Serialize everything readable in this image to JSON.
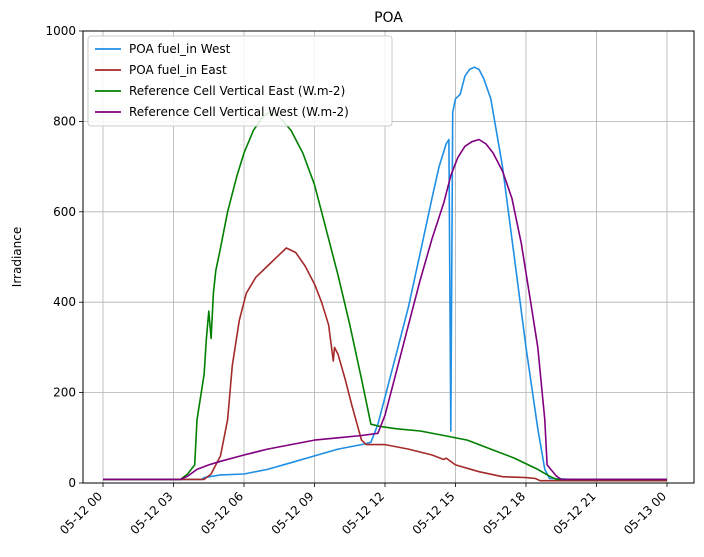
{
  "chart_data": {
    "type": "line",
    "title": "POA",
    "xlabel": "",
    "ylabel": "Irradiance",
    "x_tick_labels": [
      "05-12 00",
      "05-12 03",
      "05-12 06",
      "05-12 09",
      "05-12 12",
      "05-12 15",
      "05-12 18",
      "05-12 21",
      "05-13 00"
    ],
    "y_tick_labels": [
      "0",
      "200",
      "400",
      "600",
      "800",
      "1000"
    ],
    "xlim": [
      0,
      24
    ],
    "ylim": [
      0,
      1000
    ],
    "x_unit": "hours since 05-12 00",
    "grid": true,
    "legend_position": "top-left",
    "series": [
      {
        "name": "POA fuel_in West",
        "color": "#1f8fe6",
        "points": [
          [
            0,
            8
          ],
          [
            4.2,
            8
          ],
          [
            4.3,
            12
          ],
          [
            5,
            18
          ],
          [
            6,
            20
          ],
          [
            7,
            30
          ],
          [
            8,
            45
          ],
          [
            9,
            60
          ],
          [
            10,
            75
          ],
          [
            11,
            85
          ],
          [
            11.4,
            90
          ],
          [
            11.7,
            130
          ],
          [
            12,
            190
          ],
          [
            12.5,
            290
          ],
          [
            13,
            390
          ],
          [
            13.5,
            510
          ],
          [
            14,
            630
          ],
          [
            14.3,
            700
          ],
          [
            14.6,
            750
          ],
          [
            14.72,
            760
          ],
          [
            14.8,
            115
          ],
          [
            14.88,
            820
          ],
          [
            15,
            850
          ],
          [
            15.2,
            860
          ],
          [
            15.4,
            900
          ],
          [
            15.6,
            915
          ],
          [
            15.8,
            920
          ],
          [
            16,
            915
          ],
          [
            16.2,
            895
          ],
          [
            16.5,
            850
          ],
          [
            17,
            700
          ],
          [
            17.5,
            500
          ],
          [
            18,
            300
          ],
          [
            18.5,
            120
          ],
          [
            18.8,
            30
          ],
          [
            19,
            10
          ],
          [
            20,
            8
          ],
          [
            24,
            8
          ]
        ]
      },
      {
        "name": "POA fuel_in East",
        "color": "#a52a2a",
        "points": [
          [
            0,
            8
          ],
          [
            4.3,
            8
          ],
          [
            4.6,
            20
          ],
          [
            5,
            60
          ],
          [
            5.3,
            140
          ],
          [
            5.5,
            260
          ],
          [
            5.8,
            360
          ],
          [
            6.1,
            420
          ],
          [
            6.5,
            455
          ],
          [
            7,
            480
          ],
          [
            7.5,
            505
          ],
          [
            7.8,
            520
          ],
          [
            8.2,
            510
          ],
          [
            8.6,
            480
          ],
          [
            9,
            440
          ],
          [
            9.3,
            400
          ],
          [
            9.6,
            350
          ],
          [
            9.8,
            270
          ],
          [
            9.85,
            300
          ],
          [
            10,
            285
          ],
          [
            10.3,
            230
          ],
          [
            10.6,
            170
          ],
          [
            11,
            95
          ],
          [
            11.2,
            85
          ],
          [
            12,
            85
          ],
          [
            13,
            75
          ],
          [
            14,
            62
          ],
          [
            14.5,
            52
          ],
          [
            14.6,
            55
          ],
          [
            15,
            40
          ],
          [
            16,
            25
          ],
          [
            17,
            14
          ],
          [
            18,
            12
          ],
          [
            18.4,
            10
          ],
          [
            18.6,
            5
          ],
          [
            19,
            5
          ],
          [
            24,
            5
          ]
        ]
      },
      {
        "name": "Reference Cell Vertical East (W.m-2)",
        "color": "#008000",
        "points": [
          [
            0,
            8
          ],
          [
            3.3,
            8
          ],
          [
            3.6,
            20
          ],
          [
            3.9,
            40
          ],
          [
            4,
            140
          ],
          [
            4.3,
            240
          ],
          [
            4.4,
            320
          ],
          [
            4.5,
            380
          ],
          [
            4.6,
            320
          ],
          [
            4.7,
            420
          ],
          [
            4.8,
            470
          ],
          [
            5,
            520
          ],
          [
            5.3,
            600
          ],
          [
            5.7,
            680
          ],
          [
            6,
            730
          ],
          [
            6.4,
            780
          ],
          [
            6.8,
            810
          ],
          [
            7.2,
            825
          ],
          [
            7.5,
            810
          ],
          [
            8,
            780
          ],
          [
            8.5,
            730
          ],
          [
            9,
            660
          ],
          [
            9.5,
            560
          ],
          [
            10,
            460
          ],
          [
            10.5,
            350
          ],
          [
            11,
            230
          ],
          [
            11.4,
            130
          ],
          [
            11.8,
            125
          ],
          [
            12.5,
            120
          ],
          [
            13.5,
            115
          ],
          [
            14.5,
            105
          ],
          [
            15.5,
            95
          ],
          [
            16.5,
            75
          ],
          [
            17.5,
            55
          ],
          [
            18.5,
            30
          ],
          [
            19,
            15
          ],
          [
            19.3,
            8
          ],
          [
            24,
            8
          ]
        ]
      },
      {
        "name": "Reference Cell Vertical West (W.m-2)",
        "color": "#800080",
        "points": [
          [
            0,
            8
          ],
          [
            3.3,
            8
          ],
          [
            3.6,
            15
          ],
          [
            4,
            30
          ],
          [
            4.5,
            40
          ],
          [
            5,
            48
          ],
          [
            6,
            62
          ],
          [
            7,
            75
          ],
          [
            8,
            85
          ],
          [
            9,
            95
          ],
          [
            10,
            100
          ],
          [
            11,
            105
          ],
          [
            11.7,
            110
          ],
          [
            12,
            150
          ],
          [
            12.5,
            250
          ],
          [
            13,
            350
          ],
          [
            13.5,
            450
          ],
          [
            14,
            540
          ],
          [
            14.5,
            620
          ],
          [
            14.8,
            680
          ],
          [
            15.1,
            720
          ],
          [
            15.4,
            745
          ],
          [
            15.7,
            755
          ],
          [
            16,
            760
          ],
          [
            16.3,
            750
          ],
          [
            16.6,
            730
          ],
          [
            17,
            690
          ],
          [
            17.4,
            630
          ],
          [
            17.8,
            530
          ],
          [
            18.2,
            400
          ],
          [
            18.5,
            300
          ],
          [
            18.8,
            140
          ],
          [
            18.9,
            40
          ],
          [
            19.3,
            15
          ],
          [
            19.5,
            8
          ],
          [
            24,
            8
          ]
        ]
      }
    ]
  }
}
